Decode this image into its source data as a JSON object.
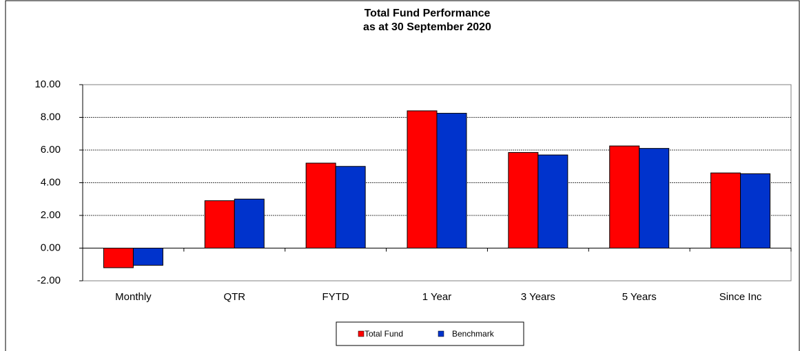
{
  "chart_data": {
    "type": "bar",
    "title": "Total Fund Performance",
    "subtitle": "as at 30 September 2020",
    "categories": [
      "Monthly",
      "QTR",
      "FYTD",
      "1 Year",
      "3 Years",
      "5 Years",
      "Since Inc"
    ],
    "series": [
      {
        "name": "Total Fund",
        "color": "#ff0000",
        "values": [
          -1.2,
          2.9,
          5.2,
          8.4,
          5.85,
          6.25,
          4.6
        ]
      },
      {
        "name": "Benchmark",
        "color": "#0033cc",
        "values": [
          -1.05,
          3.0,
          5.0,
          8.25,
          5.7,
          6.1,
          4.55
        ]
      }
    ],
    "ylim": [
      -2,
      10
    ],
    "yticks": [
      {
        "value": -2,
        "label": "-2.00"
      },
      {
        "value": 0,
        "label": "0.00"
      },
      {
        "value": 2,
        "label": "2.00"
      },
      {
        "value": 4,
        "label": "4.00"
      },
      {
        "value": 6,
        "label": "6.00"
      },
      {
        "value": 8,
        "label": "8.00"
      },
      {
        "value": 10,
        "label": "10.00"
      }
    ],
    "grid": true,
    "legend": "bottom"
  }
}
